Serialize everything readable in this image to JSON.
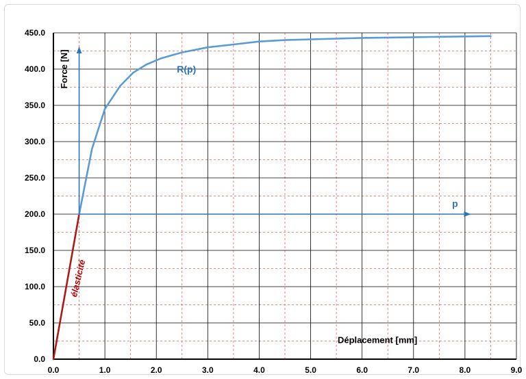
{
  "chart_data": {
    "type": "line",
    "xlabel": "Déplacement  [mm]",
    "ylabel": "Force [N]",
    "xlim": [
      0,
      9
    ],
    "ylim": [
      0,
      450
    ],
    "x_ticks": [
      "0.0",
      "1.0",
      "2.0",
      "3.0",
      "4.0",
      "5.0",
      "6.0",
      "7.0",
      "8.0",
      "9.0"
    ],
    "y_ticks": [
      "0.0",
      "50.0",
      "100.0",
      "150.0",
      "200.0",
      "250.0",
      "300.0",
      "350.0",
      "400.0",
      "450.0"
    ],
    "grid": "major solid black, minor dashed red",
    "series": [
      {
        "name": "élasticité",
        "color": "#b01818",
        "points": [
          [
            0,
            0
          ],
          [
            0.5,
            200
          ]
        ]
      },
      {
        "name": "R(p)",
        "color": "#5b9bd5",
        "points": [
          [
            0.5,
            200
          ],
          [
            0.75,
            290
          ],
          [
            1.0,
            345
          ],
          [
            1.3,
            377
          ],
          [
            1.55,
            395
          ],
          [
            1.8,
            406
          ],
          [
            2.1,
            415
          ],
          [
            2.5,
            423
          ],
          [
            3.0,
            430
          ],
          [
            3.5,
            434
          ],
          [
            4.0,
            438
          ],
          [
            4.5,
            440
          ],
          [
            5.0,
            441
          ],
          [
            5.5,
            442
          ],
          [
            6.0,
            443
          ],
          [
            6.5,
            443.5
          ],
          [
            7.0,
            444
          ],
          [
            7.5,
            444.5
          ],
          [
            8.0,
            445
          ],
          [
            8.5,
            445.5
          ]
        ]
      }
    ],
    "annotations": [
      {
        "label": "R(p)",
        "color": "#2e75b6"
      },
      {
        "label": "p",
        "color": "#2e75b6"
      },
      {
        "label": "élasticité",
        "color": "#c00000"
      }
    ],
    "arrows": {
      "color": "#2e75b6",
      "vertical": {
        "x": 0.5,
        "from_y": 200,
        "to_y": 430
      },
      "horizontal": {
        "y": 200,
        "from_x": 0.5,
        "to_x": 8.1
      }
    }
  }
}
